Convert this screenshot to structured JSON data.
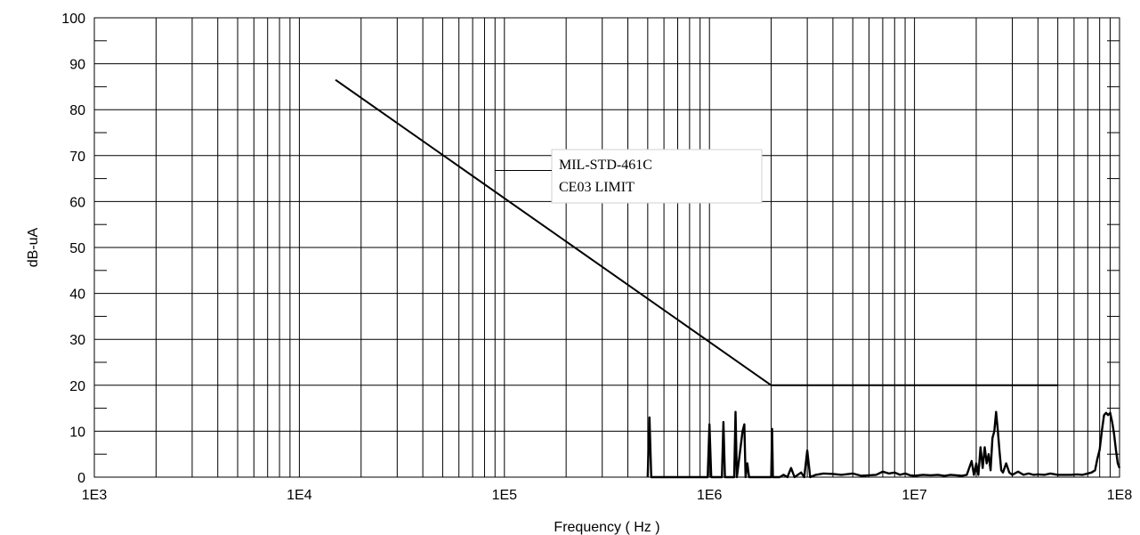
{
  "chart_data": {
    "type": "line",
    "title": "",
    "xlabel": "Frequency ( Hz )",
    "ylabel": "dB-uA",
    "x_scale": "log",
    "xlim": [
      1000,
      100000000
    ],
    "ylim": [
      0,
      100
    ],
    "x_tick_values": [
      1000,
      10000,
      100000,
      1000000,
      10000000,
      100000000
    ],
    "x_tick_labels": [
      "1E3",
      "1E4",
      "1E5",
      "1E6",
      "1E7",
      "1E8"
    ],
    "y_ticks": [
      0,
      10,
      20,
      30,
      40,
      50,
      60,
      70,
      80,
      90,
      100
    ],
    "grid": true,
    "annotation": {
      "lines": [
        "MIL-STD-461C",
        "CE03 LIMIT"
      ],
      "points_to": {
        "x": 90000,
        "y": 66
      }
    },
    "series": [
      {
        "role": "limit",
        "x": [
          15000,
          2000000,
          50000000
        ],
        "y": [
          86.5,
          20,
          20
        ]
      },
      {
        "role": "measurement",
        "x": [
          500000,
          510000,
          520000,
          530000,
          540000,
          550000,
          980000,
          1000000,
          1020000,
          1150000,
          1170000,
          1190000,
          1320000,
          1340000,
          1360000,
          1450000,
          1480000,
          1500000,
          1530000,
          1560000,
          1590000,
          1620000,
          2000000,
          2020000,
          2040000,
          2200000,
          2300000,
          2400000,
          2500000,
          2600000,
          2800000,
          2900000,
          3000000,
          3100000,
          3300000,
          3600000,
          4000000,
          4400000,
          5000000,
          5500000,
          6000000,
          6500000,
          7000000,
          7500000,
          8000000,
          8500000,
          9000000,
          9500000,
          10000000,
          11000000,
          12000000,
          13000000,
          14000000,
          15000000,
          16000000,
          17000000,
          18000000,
          19000000,
          19500000,
          20000000,
          20500000,
          21000000,
          21500000,
          22000000,
          22500000,
          23000000,
          23500000,
          24000000,
          24500000,
          25000000,
          25500000,
          26000000,
          26500000,
          27000000,
          27500000,
          28000000,
          29000000,
          30000000,
          32000000,
          34000000,
          36000000,
          38000000,
          40000000,
          43000000,
          46000000,
          50000000,
          54000000,
          58000000,
          62000000,
          66000000,
          70000000,
          73000000,
          76000000,
          78000000,
          80000000,
          82000000,
          84000000,
          86000000,
          88000000,
          90000000,
          92000000,
          94000000,
          96000000,
          98000000,
          100000000
        ],
        "y": [
          0,
          13,
          0,
          0,
          0,
          0,
          0,
          11.5,
          0,
          0,
          12,
          0,
          0,
          14.2,
          0,
          10,
          11.5,
          0,
          3,
          0,
          0,
          0,
          0,
          10.5,
          0,
          0,
          0.5,
          0,
          2,
          0,
          1,
          0,
          5.8,
          0,
          0.5,
          0.8,
          0.7,
          0.5,
          0.8,
          0.3,
          0.4,
          0.5,
          1.2,
          0.8,
          1,
          0.5,
          0.8,
          0.4,
          0.3,
          0.5,
          0.4,
          0.5,
          0.3,
          0.5,
          0.4,
          0.3,
          0.5,
          3.5,
          0.5,
          3,
          0.5,
          6.5,
          2,
          6.5,
          3,
          5,
          1.5,
          8.5,
          10,
          14.2,
          10,
          5.5,
          1.5,
          1,
          2,
          3,
          1,
          0.5,
          1.2,
          0.5,
          0.8,
          0.5,
          0.6,
          0.5,
          0.8,
          0.5,
          0.5,
          0.5,
          0.6,
          0.5,
          0.8,
          1,
          1.5,
          4,
          6,
          10,
          13.5,
          14,
          13.5,
          14,
          12,
          9.5,
          6,
          3,
          2
        ]
      }
    ]
  }
}
